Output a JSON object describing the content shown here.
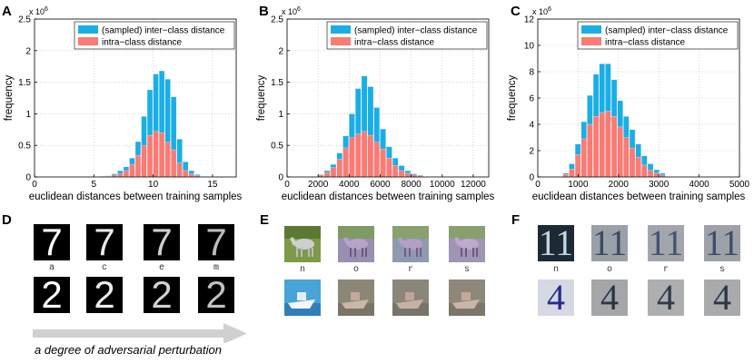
{
  "chart_data": [
    {
      "type": "bar",
      "panel": "A",
      "xlabel": "euclidean distances between training samples",
      "ylabel": "frequency",
      "y_exponent": "x 10^6",
      "xlim": [
        0,
        17
      ],
      "ylim": [
        0,
        2.5
      ],
      "xticks": [
        0,
        5,
        10,
        15
      ],
      "yticks": [
        0,
        0.5,
        1,
        1.5,
        2,
        2.5
      ],
      "grid": true,
      "legend_position": "top-right",
      "x": [
        5.75,
        6.25,
        6.75,
        7.25,
        7.75,
        8.25,
        8.75,
        9.25,
        9.75,
        10.25,
        10.75,
        11.25,
        11.75,
        12.25,
        12.75,
        13.25,
        13.75
      ],
      "series": [
        {
          "name": "(sampled) inter−class distance",
          "color": "#1aaee6",
          "values": [
            0.01,
            0.02,
            0.05,
            0.1,
            0.16,
            0.3,
            0.56,
            0.96,
            1.38,
            1.63,
            1.68,
            1.55,
            1.27,
            0.6,
            0.24,
            0.1,
            0.04
          ]
        },
        {
          "name": "intra−class distance",
          "color": "#f97b74",
          "values": [
            0.0,
            0.01,
            0.03,
            0.05,
            0.1,
            0.2,
            0.34,
            0.5,
            0.66,
            0.72,
            0.7,
            0.55,
            0.43,
            0.22,
            0.1,
            0.05,
            0.02
          ]
        }
      ]
    },
    {
      "type": "bar",
      "panel": "B",
      "xlabel": "euclidean distances between training samples",
      "ylabel": "frequency",
      "y_exponent": "x 10^6",
      "xlim": [
        0,
        13000
      ],
      "ylim": [
        0,
        2.5
      ],
      "xticks": [
        0,
        2000,
        4000,
        6000,
        8000,
        10000,
        12000
      ],
      "yticks": [
        0,
        0.5,
        1,
        1.5,
        2,
        2.5
      ],
      "grid": true,
      "legend_position": "top-right",
      "x": [
        2200,
        2600,
        3000,
        3400,
        3800,
        4200,
        4600,
        5000,
        5400,
        5800,
        6200,
        6600,
        7000,
        7400,
        7800,
        8200,
        8600
      ],
      "series": [
        {
          "name": "(sampled) inter−class distance",
          "color": "#1aaee6",
          "values": [
            0.04,
            0.1,
            0.2,
            0.38,
            0.65,
            1.0,
            1.4,
            1.6,
            1.43,
            1.1,
            0.76,
            0.48,
            0.3,
            0.18,
            0.1,
            0.05,
            0.03
          ]
        },
        {
          "name": "intra−class distance",
          "color": "#f97b74",
          "values": [
            0.03,
            0.07,
            0.15,
            0.28,
            0.46,
            0.62,
            0.68,
            0.72,
            0.66,
            0.55,
            0.44,
            0.3,
            0.18,
            0.1,
            0.06,
            0.03,
            0.02
          ]
        }
      ]
    },
    {
      "type": "bar",
      "panel": "C",
      "xlabel": "euclidean distances between training samples",
      "ylabel": "frequency",
      "y_exponent": "x 10^6",
      "xlim": [
        0,
        5000
      ],
      "ylim": [
        0,
        12
      ],
      "xticks": [
        0,
        1000,
        2000,
        3000,
        4000,
        5000
      ],
      "yticks": [
        0,
        2,
        4,
        6,
        8,
        10,
        12
      ],
      "grid": true,
      "legend_position": "top-right",
      "x": [
        700,
        850,
        1000,
        1150,
        1300,
        1450,
        1600,
        1750,
        1900,
        2050,
        2200,
        2350,
        2500,
        2650,
        2800,
        2950,
        3100
      ],
      "series": [
        {
          "name": "(sampled) inter−class distance",
          "color": "#1aaee6",
          "values": [
            0.3,
            1.0,
            2.5,
            4.2,
            6.2,
            7.8,
            8.6,
            8.6,
            7.4,
            5.8,
            4.6,
            3.6,
            2.5,
            1.6,
            1.0,
            0.55,
            0.3
          ]
        },
        {
          "name": "intra−class distance",
          "color": "#f97b74",
          "values": [
            0.2,
            0.6,
            1.7,
            2.9,
            4.0,
            4.6,
            4.9,
            5.0,
            4.6,
            3.8,
            3.0,
            2.2,
            1.5,
            0.9,
            0.5,
            0.3,
            0.15
          ]
        }
      ]
    }
  ],
  "panels": {
    "D": {
      "letter": "D",
      "captions": [
        "a",
        "c",
        "e",
        "m"
      ],
      "row1_digit": "7",
      "row2_digit": "2"
    },
    "E": {
      "letter": "E",
      "captions": [
        "n",
        "o",
        "r",
        "s"
      ]
    },
    "F": {
      "letter": "F",
      "captions": [
        "n",
        "o",
        "r",
        "s"
      ],
      "row1_digit": "11",
      "row2_digit": "4"
    }
  },
  "arrow": {
    "label": "a degree of adversarial perturbation"
  }
}
